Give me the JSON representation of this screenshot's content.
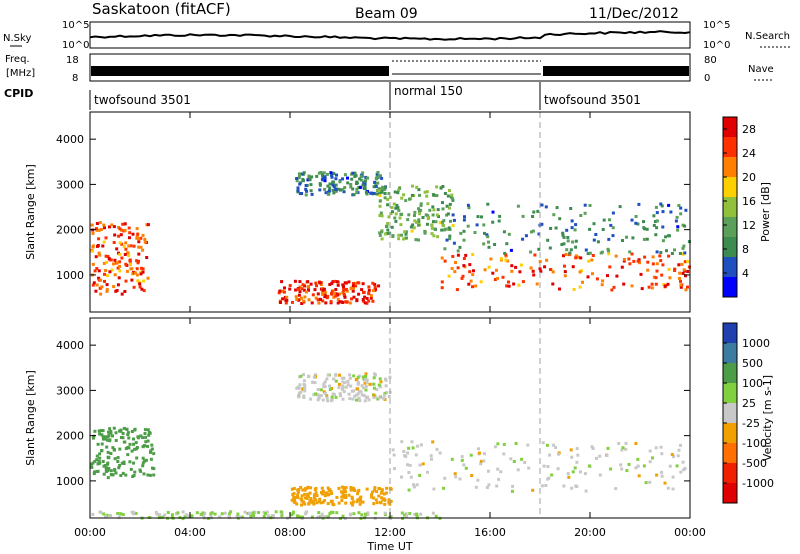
{
  "header": {
    "station": "Saskatoon (fitACF)",
    "beam": "Beam 09",
    "date": "11/Dec/2012"
  },
  "noise_panel": {
    "left_label": "N.Sky",
    "right_label": "N.Search",
    "tick_top": "10^5",
    "tick_bottom": "10^0"
  },
  "freq_panel": {
    "left_label_line1": "Freq.",
    "left_label_line2": "[MHz]",
    "right_label": "Nave",
    "left_tick_top": "18",
    "left_tick_bottom": "8",
    "right_tick_top": "80",
    "right_tick_bottom": "0"
  },
  "cpid_panel": {
    "label": "CPID",
    "segments": [
      {
        "name": "twofsound 3501",
        "start_hour": 0
      },
      {
        "name": "normal 150",
        "start_hour": 12
      },
      {
        "name": "twofsound 3501",
        "start_hour": 18
      }
    ]
  },
  "x_axis": {
    "label": "Time UT",
    "ticks": [
      "00:00",
      "04:00",
      "08:00",
      "12:00",
      "16:00",
      "20:00",
      "00:00"
    ]
  },
  "chart_data": [
    {
      "type": "heatmap",
      "title": "",
      "xlabel": "Time UT",
      "ylabel": "Slant Range [km]",
      "xlim_hours": [
        0,
        24
      ],
      "ylim": [
        180,
        4600
      ],
      "yticks": [
        "1000",
        "2000",
        "3000",
        "4000"
      ],
      "colorbar": {
        "label": "Power [dB]",
        "ticks": [
          "4",
          "8",
          "12",
          "16",
          "20",
          "24",
          "28"
        ],
        "range": [
          0,
          30
        ]
      },
      "regions": [
        {
          "t0": 0.0,
          "t1": 2.3,
          "r_lo": 600,
          "r_hi": 2200,
          "level_db": 24
        },
        {
          "t0": 7.5,
          "t1": 11.5,
          "r_lo": 400,
          "r_hi": 900,
          "level_db": 26
        },
        {
          "t0": 8.2,
          "t1": 11.8,
          "r_lo": 2800,
          "r_hi": 3300,
          "level_db": 8
        },
        {
          "t0": 11.5,
          "t1": 14.5,
          "r_lo": 1800,
          "r_hi": 3000,
          "level_db": 12
        },
        {
          "t0": 14.0,
          "t1": 24.0,
          "r_lo": 700,
          "r_hi": 1500,
          "level_db": 24
        },
        {
          "t0": 14.0,
          "t1": 24.0,
          "r_lo": 1500,
          "r_hi": 2600,
          "level_db": 8
        }
      ]
    },
    {
      "type": "heatmap",
      "title": "",
      "xlabel": "Time UT",
      "ylabel": "Slant Range [km]",
      "xlim_hours": [
        0,
        24
      ],
      "ylim": [
        180,
        4600
      ],
      "yticks": [
        "1000",
        "2000",
        "3000",
        "4000"
      ],
      "colorbar": {
        "label": "Velocity [m s-1]",
        "ticks": [
          "1000",
          "500",
          "100",
          "25",
          "-25",
          "-100",
          "-500",
          "-1000"
        ],
        "range": [
          -1000,
          1000
        ]
      },
      "regions": [
        {
          "t0": 0.0,
          "t1": 2.5,
          "r_lo": 1100,
          "r_hi": 2200,
          "velocity": 100
        },
        {
          "t0": 8.0,
          "t1": 12.0,
          "r_lo": 500,
          "r_hi": 900,
          "velocity": -100
        },
        {
          "t0": 8.2,
          "t1": 12.0,
          "r_lo": 2800,
          "r_hi": 3400,
          "velocity": 0
        },
        {
          "t0": 12.0,
          "t1": 24.0,
          "r_lo": 800,
          "r_hi": 1900,
          "velocity": 0
        },
        {
          "t0": 0.0,
          "t1": 14.0,
          "r_lo": 200,
          "r_hi": 350,
          "velocity": 25
        }
      ]
    }
  ],
  "colors": {
    "power_scale": [
      "#0000ff",
      "#2050c0",
      "#3c8c50",
      "#5aa05a",
      "#90c03c",
      "#ffd000",
      "#ff8000",
      "#ff3000",
      "#e00000"
    ],
    "velocity_scale": [
      "#2040b0",
      "#3c7ca0",
      "#4c9c48",
      "#80d040",
      "#c8c8c8",
      "#f0a000",
      "#ff7000",
      "#f02000",
      "#e00000"
    ],
    "dashed_line": "#a0a0a0"
  }
}
